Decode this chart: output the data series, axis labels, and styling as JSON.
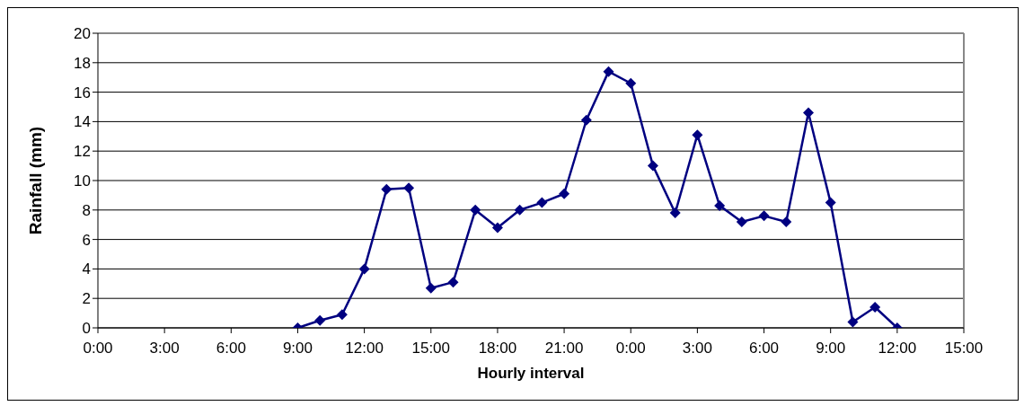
{
  "chart_data": {
    "type": "line",
    "xlabel": "Hourly interval",
    "ylabel": "Rainfall (mm)",
    "x": [
      "2000-01-01T09:00",
      "2000-01-01T10:00",
      "2000-01-01T11:00",
      "2000-01-01T12:00",
      "2000-01-01T13:00",
      "2000-01-01T14:00",
      "2000-01-01T15:00",
      "2000-01-01T16:00",
      "2000-01-01T17:00",
      "2000-01-01T18:00",
      "2000-01-01T19:00",
      "2000-01-01T20:00",
      "2000-01-01T21:00",
      "2000-01-01T22:00",
      "2000-01-01T23:00",
      "2000-01-02T00:00",
      "2000-01-02T01:00",
      "2000-01-02T02:00",
      "2000-01-02T03:00",
      "2000-01-02T04:00",
      "2000-01-02T05:00",
      "2000-01-02T06:00",
      "2000-01-02T07:00",
      "2000-01-02T08:00",
      "2000-01-02T09:00",
      "2000-01-02T10:00",
      "2000-01-02T11:00",
      "2000-01-02T12:00"
    ],
    "series": [
      {
        "color": "#000080",
        "values": [
          0,
          0.5,
          0.9,
          4.0,
          9.4,
          9.5,
          2.7,
          3.1,
          8.0,
          6.8,
          8.0,
          8.5,
          9.1,
          14.1,
          17.4,
          16.6,
          11.0,
          7.8,
          13.1,
          8.3,
          7.2,
          7.6,
          7.2,
          14.6,
          8.5,
          0.4,
          1.4,
          0
        ]
      }
    ],
    "xlim": [
      "2000-01-01T00:00",
      "2000-01-02T15:00"
    ],
    "xticks": [
      {
        "value": "2000-01-01T00:00",
        "label": "0:00"
      },
      {
        "value": "2000-01-01T03:00",
        "label": "3:00"
      },
      {
        "value": "2000-01-01T06:00",
        "label": "6:00"
      },
      {
        "value": "2000-01-01T09:00",
        "label": "9:00"
      },
      {
        "value": "2000-01-01T12:00",
        "label": "12:00"
      },
      {
        "value": "2000-01-01T15:00",
        "label": "15:00"
      },
      {
        "value": "2000-01-01T18:00",
        "label": "18:00"
      },
      {
        "value": "2000-01-01T21:00",
        "label": "21:00"
      },
      {
        "value": "2000-01-02T00:00",
        "label": "0:00"
      },
      {
        "value": "2000-01-02T03:00",
        "label": "3:00"
      },
      {
        "value": "2000-01-02T06:00",
        "label": "6:00"
      },
      {
        "value": "2000-01-02T09:00",
        "label": "9:00"
      },
      {
        "value": "2000-01-02T12:00",
        "label": "12:00"
      },
      {
        "value": "2000-01-02T15:00",
        "label": "15:00"
      }
    ],
    "ylim": [
      0,
      20
    ],
    "yticks": [
      0,
      2,
      4,
      6,
      8,
      10,
      12,
      14,
      16,
      18,
      20
    ],
    "grid": "y",
    "marker": "diamond",
    "line_style": "solid",
    "legend": false
  }
}
